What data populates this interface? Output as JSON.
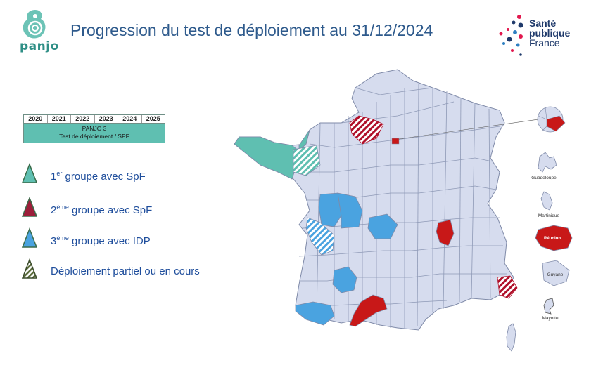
{
  "header": {
    "title": "Progression du test de déploiement au 31/12/2024",
    "panjo_logo_text": "panjo",
    "spf_logo": {
      "line1": "Santé",
      "line2": "publique",
      "line3": "France"
    }
  },
  "timeline": {
    "years": [
      "2020",
      "2021",
      "2022",
      "2023",
      "2024",
      "2025"
    ],
    "bar_line1": "PANJO 3",
    "bar_line2": "Test de déploiement / SPF"
  },
  "legend": {
    "items": [
      {
        "prefix": "1",
        "sup": "er",
        "suffix": " groupe avec SpF",
        "color": "#5fbfb1"
      },
      {
        "prefix": "2",
        "sup": "ème",
        "suffix": " groupe avec SpF",
        "color": "#9c1e3a"
      },
      {
        "prefix": "3",
        "sup": "ème",
        "suffix": " groupe avec IDP",
        "color": "#4aa3e0"
      },
      {
        "prefix": "",
        "sup": "",
        "suffix": "Déploiement partiel ou en cours",
        "color": "#5a6b3a"
      }
    ]
  },
  "map": {
    "colors": {
      "base": "#d6dcee",
      "group1": "#5fbfb1",
      "group2": "#c81818",
      "group3": "#4aa3e0",
      "border": "#7f8aa8"
    },
    "overseas": {
      "guadeloupe": "Guadeloupe",
      "martinique": "Martinique",
      "reunion": "Réunion",
      "guyane": "Guyane",
      "mayotte": "Mayotte"
    }
  }
}
